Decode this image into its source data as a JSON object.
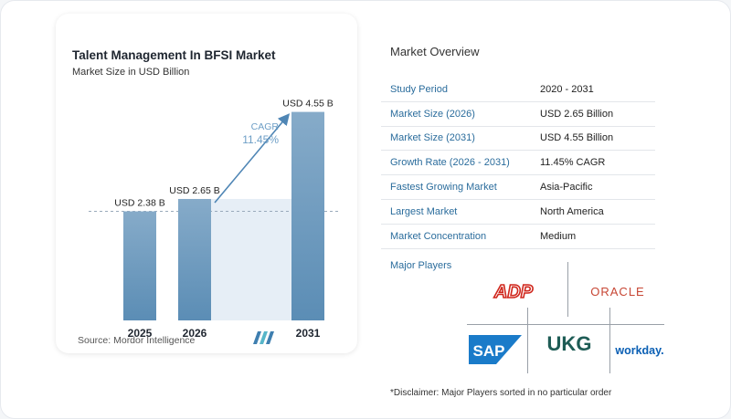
{
  "chart_data": {
    "type": "bar",
    "title": "Talent Management In BFSI Market",
    "subtitle": "Market Size in USD Billion",
    "categories": [
      "2025",
      "2026",
      "2031"
    ],
    "values": [
      2.38,
      2.65,
      4.55
    ],
    "value_labels": [
      "USD 2.38 B",
      "USD 2.65 B",
      "USD 4.55 B"
    ],
    "ylim": [
      0,
      5
    ],
    "grid": false,
    "cagr_label": "CAGR",
    "cagr_value": "11.45%",
    "source": "Source: Mordor Intelligence",
    "colors": {
      "bar_top": "#86abc9",
      "bar_bottom": "#5b8db5",
      "band": "#e6eef6",
      "arrow": "#4f86b5",
      "cagr": "#6d9ec6"
    }
  },
  "overview": {
    "title": "Market Overview",
    "rows": [
      {
        "label": "Study Period",
        "value": "2020 - 2031"
      },
      {
        "label": "Market Size (2026)",
        "value": "USD 2.65 Billion"
      },
      {
        "label": "Market Size (2031)",
        "value": "USD 4.55 Billion"
      },
      {
        "label": "Growth Rate (2026 - 2031)",
        "value": "11.45% CAGR"
      },
      {
        "label": "Fastest Growing Market",
        "value": "Asia-Pacific"
      },
      {
        "label": "Largest Market",
        "value": "North America"
      },
      {
        "label": "Market Concentration",
        "value": "Medium"
      }
    ],
    "players_title": "Major Players",
    "players": [
      "ADP",
      "ORACLE",
      "SAP",
      "UKG",
      "workday."
    ],
    "disclaimer": "*Disclaimer: Major Players sorted in no particular order"
  }
}
